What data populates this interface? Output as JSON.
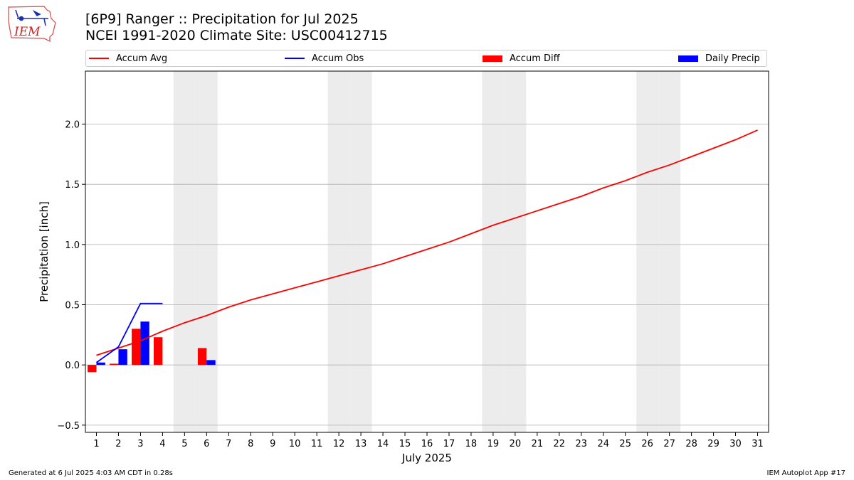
{
  "header": {
    "title_line1": "[6P9] Ranger :: Precipitation for Jul 2025",
    "title_line2": "NCEI 1991-2020 Climate Site: USC00412715",
    "logo_text": "IEM"
  },
  "footer": {
    "generated": "Generated at 6 Jul 2025 4:03 AM CDT in 0.28s",
    "app": "IEM Autoplot App #17"
  },
  "colors": {
    "avg": "#ff0000",
    "obs": "#0000ff",
    "diff": "#ff0000",
    "daily": "#0000ff",
    "weekend": "#ececec",
    "grid": "#b0b0b0"
  },
  "chart_data": {
    "type": "bar",
    "xlabel": "July 2025",
    "ylabel": "Precipitation [inch]",
    "xlim": [
      0.5,
      31.5
    ],
    "ylim": [
      -0.56,
      2.44
    ],
    "yticks": [
      -0.5,
      0.0,
      0.5,
      1.0,
      1.5,
      2.0
    ],
    "ytick_labels": [
      "−0.5",
      "0.0",
      "0.5",
      "1.0",
      "1.5",
      "2.0"
    ],
    "categories": [
      "1",
      "2",
      "3",
      "4",
      "5",
      "6",
      "7",
      "8",
      "9",
      "10",
      "11",
      "12",
      "13",
      "14",
      "15",
      "16",
      "17",
      "18",
      "19",
      "20",
      "21",
      "22",
      "23",
      "24",
      "25",
      "26",
      "27",
      "28",
      "29",
      "30",
      "31"
    ],
    "weekend_days": [
      5,
      6,
      12,
      13,
      19,
      20,
      26,
      27
    ],
    "grid": "horizontal",
    "legend": [
      {
        "label": "Accum Avg",
        "kind": "line",
        "color": "#ff0000"
      },
      {
        "label": "Accum Obs",
        "kind": "line",
        "color": "#0000ff"
      },
      {
        "label": "Accum Diff",
        "kind": "bar",
        "color": "#ff0000"
      },
      {
        "label": "Daily Precip",
        "kind": "bar",
        "color": "#0000ff"
      }
    ],
    "series": [
      {
        "name": "Accum Avg",
        "type": "line",
        "x": [
          1,
          2,
          3,
          4,
          5,
          6,
          7,
          8,
          9,
          10,
          11,
          12,
          13,
          14,
          15,
          16,
          17,
          18,
          19,
          20,
          21,
          22,
          23,
          24,
          25,
          26,
          27,
          28,
          29,
          30,
          31
        ],
        "values": [
          0.08,
          0.14,
          0.2,
          0.28,
          0.35,
          0.41,
          0.48,
          0.54,
          0.59,
          0.64,
          0.69,
          0.74,
          0.79,
          0.84,
          0.9,
          0.96,
          1.02,
          1.09,
          1.16,
          1.22,
          1.28,
          1.34,
          1.4,
          1.47,
          1.53,
          1.6,
          1.66,
          1.73,
          1.8,
          1.87,
          1.95
        ]
      },
      {
        "name": "Accum Obs",
        "type": "line",
        "x": [
          1,
          2,
          3,
          4
        ],
        "values": [
          0.02,
          0.15,
          0.51,
          0.51
        ]
      },
      {
        "name": "Accum Diff",
        "type": "bar",
        "x": [
          1,
          2,
          3,
          4,
          6
        ],
        "values": [
          -0.06,
          0.01,
          0.3,
          0.23,
          0.14
        ]
      },
      {
        "name": "Daily Precip",
        "type": "bar",
        "x": [
          1,
          2,
          3,
          4,
          6
        ],
        "values": [
          0.02,
          0.13,
          0.36,
          0.0,
          0.04
        ]
      }
    ]
  }
}
